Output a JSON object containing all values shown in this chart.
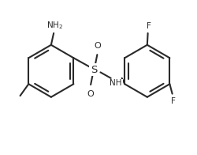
{
  "bg_color": "#ffffff",
  "line_color": "#2a2a2a",
  "lw": 1.5,
  "fs": 7.5,
  "figsize": [
    2.5,
    1.96
  ],
  "dpi": 100,
  "xlim": [
    -0.15,
    2.85
  ],
  "ylim": [
    -0.55,
    1.35
  ]
}
